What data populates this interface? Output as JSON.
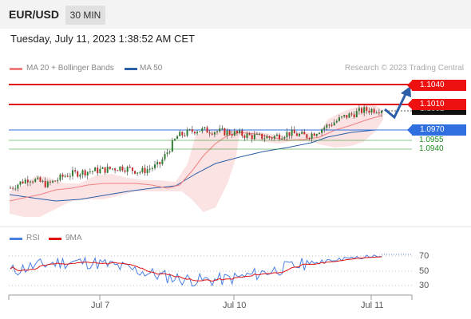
{
  "header": {
    "pair": "EUR/USD",
    "timeframe": "30 MIN"
  },
  "datetime": "Tuesday, July 11, 2023 1:38:52 AM CET",
  "legend": {
    "ma20_label": "MA 20 + Bollinger Bands",
    "ma50_label": "MA 50",
    "credit": "Research © 2023 Trading Central",
    "ma20_color": "#f08080",
    "ma50_color": "#2b5fa8"
  },
  "levels": {
    "r2": "1.1040",
    "r1": "1.1010",
    "last_price_partial": "1.1002",
    "pivot": "1.0970",
    "s1": "1.0955",
    "s2": "1.0940",
    "resistance_color": "#e11111",
    "pivot_color": "#2f6fe0",
    "support_color": "#1f8f1f"
  },
  "rsi": {
    "rsi_label": "RSI",
    "ma_label": "9MA",
    "tick_70": "70",
    "tick_50": "50",
    "tick_30": "30",
    "rsi_color": "#4a7fe0",
    "ma_color": "#e11111"
  },
  "xaxis": {
    "labels": [
      "Jul 7",
      "Jul 10",
      "Jul 11"
    ]
  },
  "chart_data": [
    {
      "type": "candlestick",
      "title": "",
      "series": [
        {
          "name": "MA 20 + Bollinger Bands"
        },
        {
          "name": "MA 50"
        }
      ],
      "horizontal_levels": [
        1.104,
        1.101,
        1.097,
        1.0955,
        1.094
      ],
      "approx_close_path": [
        1.088,
        1.0895,
        1.0885,
        1.09,
        1.0905,
        1.0908,
        1.0912,
        1.0905,
        1.0915,
        1.096,
        1.097,
        1.0968,
        1.0965,
        1.096,
        1.0958,
        1.0965,
        1.096,
        1.0975,
        1.099,
        1.1,
        1.1002
      ],
      "forecast": "up towards 1.1040"
    },
    {
      "type": "line",
      "title": "",
      "series": [
        {
          "name": "RSI"
        },
        {
          "name": "9MA"
        }
      ],
      "y_ticks": [
        70,
        50,
        30
      ]
    }
  ]
}
